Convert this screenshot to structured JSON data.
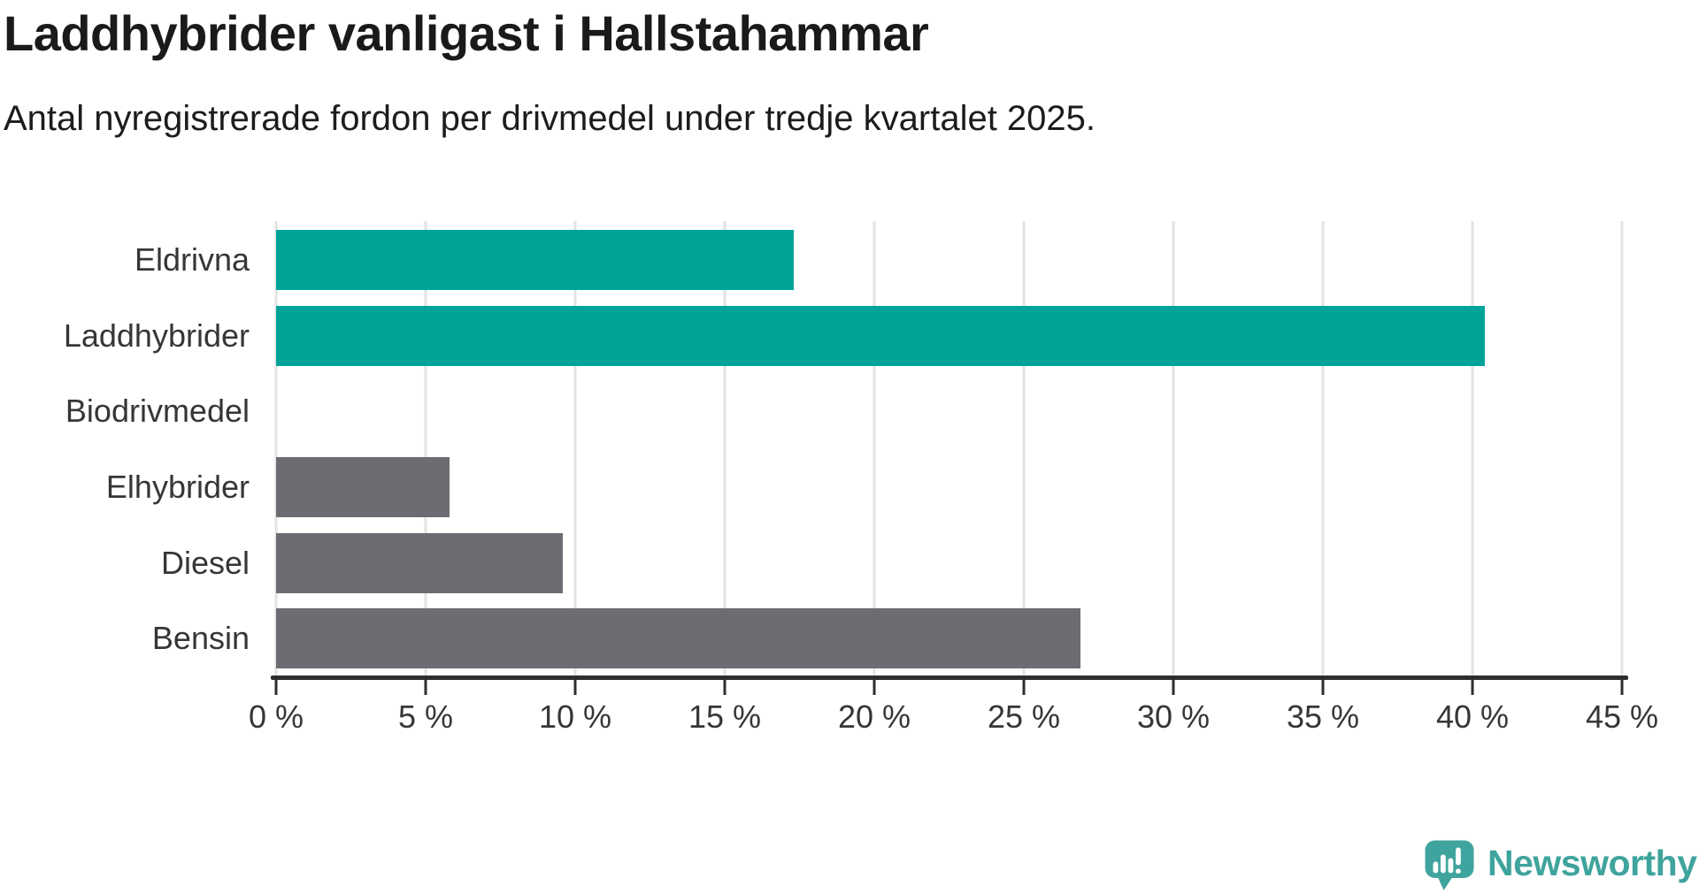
{
  "chart_data": {
    "type": "bar",
    "orientation": "horizontal",
    "title": "Laddhybrider vanligast i Hallstahammar",
    "subtitle": "Antal nyregistrerade fordon per drivmedel under tredje kvartalet 2025.",
    "categories": [
      "Eldrivna",
      "Laddhybrider",
      "Biodrivmedel",
      "Elhybrider",
      "Diesel",
      "Bensin"
    ],
    "values": [
      17.3,
      40.4,
      0,
      5.8,
      9.6,
      26.9
    ],
    "unit": "%",
    "xlabel": "",
    "ylabel": "",
    "xlim": [
      0,
      45
    ],
    "xticks": [
      0,
      5,
      10,
      15,
      20,
      25,
      30,
      35,
      40,
      45
    ],
    "tick_suffix": " %",
    "grid": "vertical-on",
    "legend": "none",
    "bar_colors": [
      "#00a398",
      "#00a398",
      "#00a398",
      "#6c6c72",
      "#6c6c72",
      "#6c6c72"
    ],
    "colors": {
      "accent_teal": "#00a398",
      "neutral_gray": "#6c6c72"
    }
  },
  "footer": {
    "brand": "Newsworthy",
    "brand_color": "#3fa49d"
  }
}
